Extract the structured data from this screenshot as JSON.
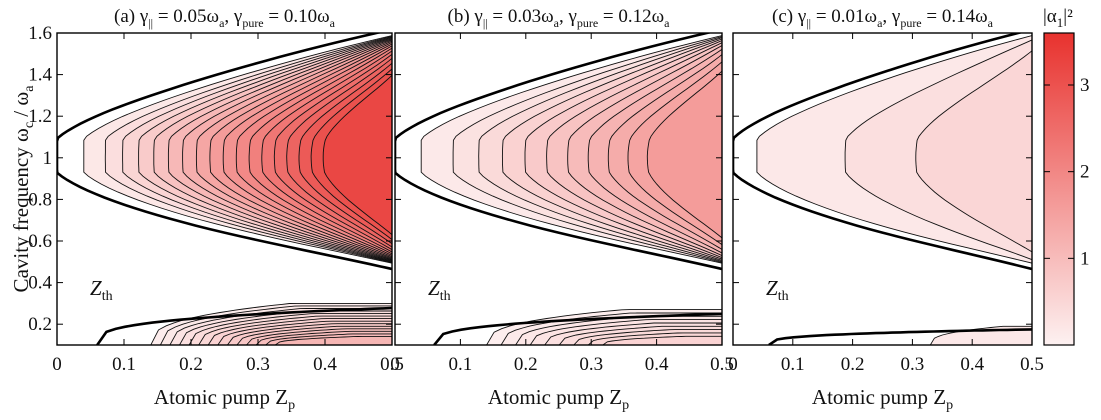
{
  "figure": {
    "ylabel": "Cavity frequency ω",
    "ylabel_sub": "c",
    "ylabel_suffix": " / ω",
    "ylabel_sub2": "a",
    "xlabel": "Atomic pump Z",
    "xlabel_sub": "p",
    "threshold_label": "Z",
    "threshold_label_sub": "th",
    "colorbar_label": "|α",
    "colorbar_label_sub": "1",
    "colorbar_label_sup": "|²",
    "colorbar_ticks": [
      "1",
      "2",
      "3"
    ],
    "colors": {
      "low": "#fdf1f1",
      "high": "#e8322e"
    }
  },
  "chart_data": [
    {
      "type": "heatmap",
      "title": {
        "prefix": "(a) γ",
        "s1": "||",
        "mid": " = 0.05ω",
        "s2": "a",
        "mid2": ", γ",
        "s3": "pure",
        "mid3": " = 0.10ω",
        "s4": "a"
      },
      "x_ticks": [
        "0",
        "0.1",
        "0.2",
        "0.3",
        "0.4",
        "0.5"
      ],
      "y_ticks": [
        "0.2",
        "0.4",
        "0.6",
        "0.8",
        "1",
        "1.2",
        "1.4",
        "1.6"
      ],
      "xlim": [
        0,
        0.5
      ],
      "ylim": [
        0.1,
        1.6
      ],
      "max_value": 3.2,
      "upper_contours": 18,
      "lower_contours": 14
    },
    {
      "type": "heatmap",
      "title": {
        "prefix": "(b) γ",
        "s1": "||",
        "mid": " = 0.03ω",
        "s2": "a",
        "mid2": ", γ",
        "s3": "pure",
        "mid3": " = 0.12ω",
        "s4": "a"
      },
      "x_ticks": [
        "0",
        "0.1",
        "0.2",
        "0.3",
        "0.4",
        "0.5"
      ],
      "xlim": [
        0,
        0.5
      ],
      "ylim": [
        0.1,
        1.6
      ],
      "max_value": 1.6,
      "upper_contours": 11,
      "lower_contours": 9
    },
    {
      "type": "heatmap",
      "title": {
        "prefix": "(c) γ",
        "s1": "||",
        "mid": " = 0.01ω",
        "s2": "a",
        "mid2": ", γ",
        "s3": "pure",
        "mid3": " = 0.14ω",
        "s4": "a"
      },
      "x_ticks": [
        "0",
        "0.1",
        "0.2",
        "0.3",
        "0.4",
        "0.5"
      ],
      "xlim": [
        0,
        0.5
      ],
      "ylim": [
        0.1,
        1.6
      ],
      "max_value": 0.5,
      "upper_contours": 3,
      "lower_contours": 1
    }
  ]
}
